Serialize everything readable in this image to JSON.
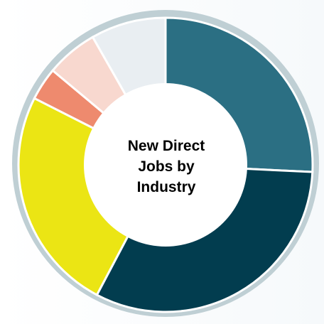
{
  "chart_data": {
    "type": "pie",
    "title": "New Direct Jobs by Industry",
    "subtitle": "",
    "legend": "none",
    "slices": [
      {
        "value": 25,
        "color": "#2b6f83"
      },
      {
        "value": 31,
        "color": "#023d4f"
      },
      {
        "value": 24,
        "color": "#ebe514"
      },
      {
        "value": 3.5,
        "color": "#ee8a6e"
      },
      {
        "value": 5.5,
        "color": "#f8d8cf"
      },
      {
        "value": 8,
        "color": "#e9eef2"
      }
    ],
    "ring_color": "#bfcfd4",
    "gap_color": "#ffffff"
  }
}
